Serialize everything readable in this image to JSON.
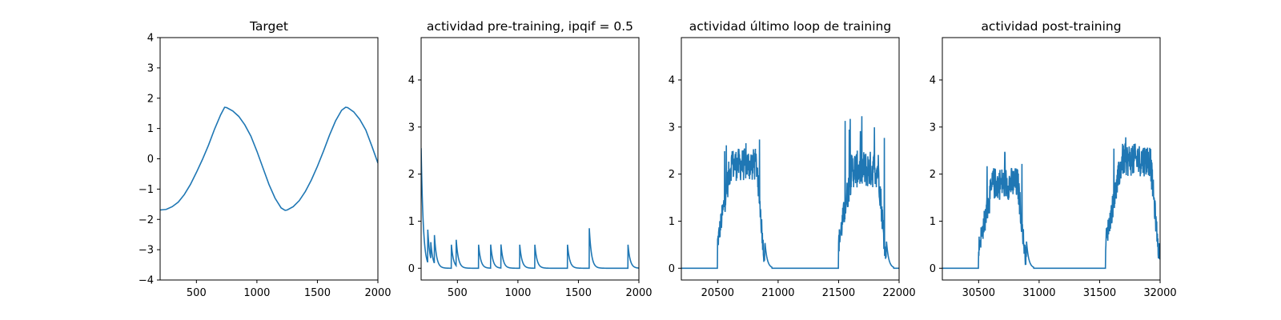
{
  "chart_data": [
    {
      "type": "line",
      "title": "Target",
      "xlabel": "",
      "ylabel": "",
      "xlim": [
        200,
        2000
      ],
      "ylim": [
        -4,
        4
      ],
      "xticks": [
        500,
        1000,
        1500,
        2000
      ],
      "yticks": [
        -4,
        -3,
        -2,
        -1,
        0,
        1,
        2,
        3,
        4
      ],
      "xtick_labels": [
        "500",
        "1000",
        "1500",
        "2000"
      ],
      "ytick_labels": [
        "−4",
        "−3",
        "−2",
        "−1",
        "0",
        "1",
        "2",
        "3",
        "4"
      ],
      "grid": false,
      "color": "#1f77b4",
      "series": [
        {
          "x": [
            200,
            250,
            300,
            350,
            400,
            450,
            500,
            550,
            600,
            650,
            700,
            733,
            750,
            800,
            850,
            900,
            950,
            1000,
            1050,
            1100,
            1150,
            1200,
            1233,
            1250,
            1300,
            1350,
            1400,
            1450,
            1500,
            1550,
            1600,
            1650,
            1700,
            1733,
            1750,
            1800,
            1850,
            1900,
            1950,
            2000
          ],
          "y": [
            -1.69,
            -1.67,
            -1.58,
            -1.43,
            -1.18,
            -0.85,
            -0.45,
            -0.02,
            0.45,
            0.98,
            1.45,
            1.7,
            1.69,
            1.58,
            1.4,
            1.12,
            0.75,
            0.25,
            -0.3,
            -0.85,
            -1.3,
            -1.62,
            -1.7,
            -1.69,
            -1.58,
            -1.38,
            -1.08,
            -0.7,
            -0.25,
            0.25,
            0.78,
            1.25,
            1.6,
            1.7,
            1.69,
            1.55,
            1.3,
            0.95,
            0.42,
            -0.14
          ]
        }
      ]
    },
    {
      "type": "line",
      "title": "actividad pre-training, ipqif = 0.5",
      "xlabel": "",
      "ylabel": "",
      "xlim": [
        200,
        2000
      ],
      "ylim": [
        -0.25,
        4.9
      ],
      "xticks": [
        500,
        1000,
        1500,
        2000
      ],
      "yticks": [
        0,
        1,
        2,
        3,
        4
      ],
      "xtick_labels": [
        "500",
        "1000",
        "1500",
        "2000"
      ],
      "ytick_labels": [
        "0",
        "1",
        "2",
        "3",
        "4"
      ],
      "grid": false,
      "color": "#1f77b4",
      "spikes": [
        {
          "t": 200,
          "h": 2.55
        },
        {
          "t": 255,
          "h": 0.7
        },
        {
          "t": 280,
          "h": 0.35
        },
        {
          "t": 310,
          "h": 0.6
        },
        {
          "t": 450,
          "h": 0.5
        },
        {
          "t": 490,
          "h": 0.55
        },
        {
          "t": 675,
          "h": 0.5
        },
        {
          "t": 775,
          "h": 0.5
        },
        {
          "t": 860,
          "h": 0.5
        },
        {
          "t": 1015,
          "h": 0.5
        },
        {
          "t": 1140,
          "h": 0.5
        },
        {
          "t": 1410,
          "h": 0.5
        },
        {
          "t": 1590,
          "h": 0.85
        },
        {
          "t": 1910,
          "h": 0.5
        }
      ],
      "decay_tau": 18
    },
    {
      "type": "line",
      "title": "actividad último loop de training",
      "xlabel": "",
      "ylabel": "",
      "xlim": [
        20200,
        22000
      ],
      "ylim": [
        -0.25,
        4.9
      ],
      "xticks": [
        20500,
        21000,
        21500,
        22000
      ],
      "yticks": [
        0,
        1,
        2,
        3,
        4
      ],
      "xtick_labels": [
        "20500",
        "21000",
        "21500",
        "22000"
      ],
      "ytick_labels": [
        "0",
        "1",
        "2",
        "3",
        "4"
      ],
      "grid": false,
      "color": "#1f77b4",
      "bumps": [
        {
          "on": 20500,
          "off": 20890,
          "ramp": 0.28,
          "peak": 2.2,
          "noise": 0.35,
          "max_spike": 2.8
        },
        {
          "on": 21500,
          "off": 21895,
          "ramp": 0.28,
          "peak": 2.1,
          "noise": 0.4,
          "max_spike": 3.25
        }
      ]
    },
    {
      "type": "line",
      "title": "actividad post-training",
      "xlabel": "",
      "ylabel": "",
      "xlim": [
        30200,
        32000
      ],
      "ylim": [
        -0.25,
        4.9
      ],
      "xticks": [
        30500,
        31000,
        31500,
        32000
      ],
      "yticks": [
        0,
        1,
        2,
        3,
        4
      ],
      "xtick_labels": [
        "30500",
        "31000",
        "31500",
        "32000"
      ],
      "ytick_labels": [
        "0",
        "1",
        "2",
        "3",
        "4"
      ],
      "grid": false,
      "color": "#1f77b4",
      "bumps": [
        {
          "on": 30500,
          "off": 30895,
          "ramp": 0.3,
          "peak": 1.8,
          "noise": 0.35,
          "max_spike": 2.5
        },
        {
          "on": 31550,
          "off": 32000,
          "ramp": 0.3,
          "peak": 2.3,
          "noise": 0.35,
          "max_spike": 2.9
        }
      ]
    }
  ]
}
